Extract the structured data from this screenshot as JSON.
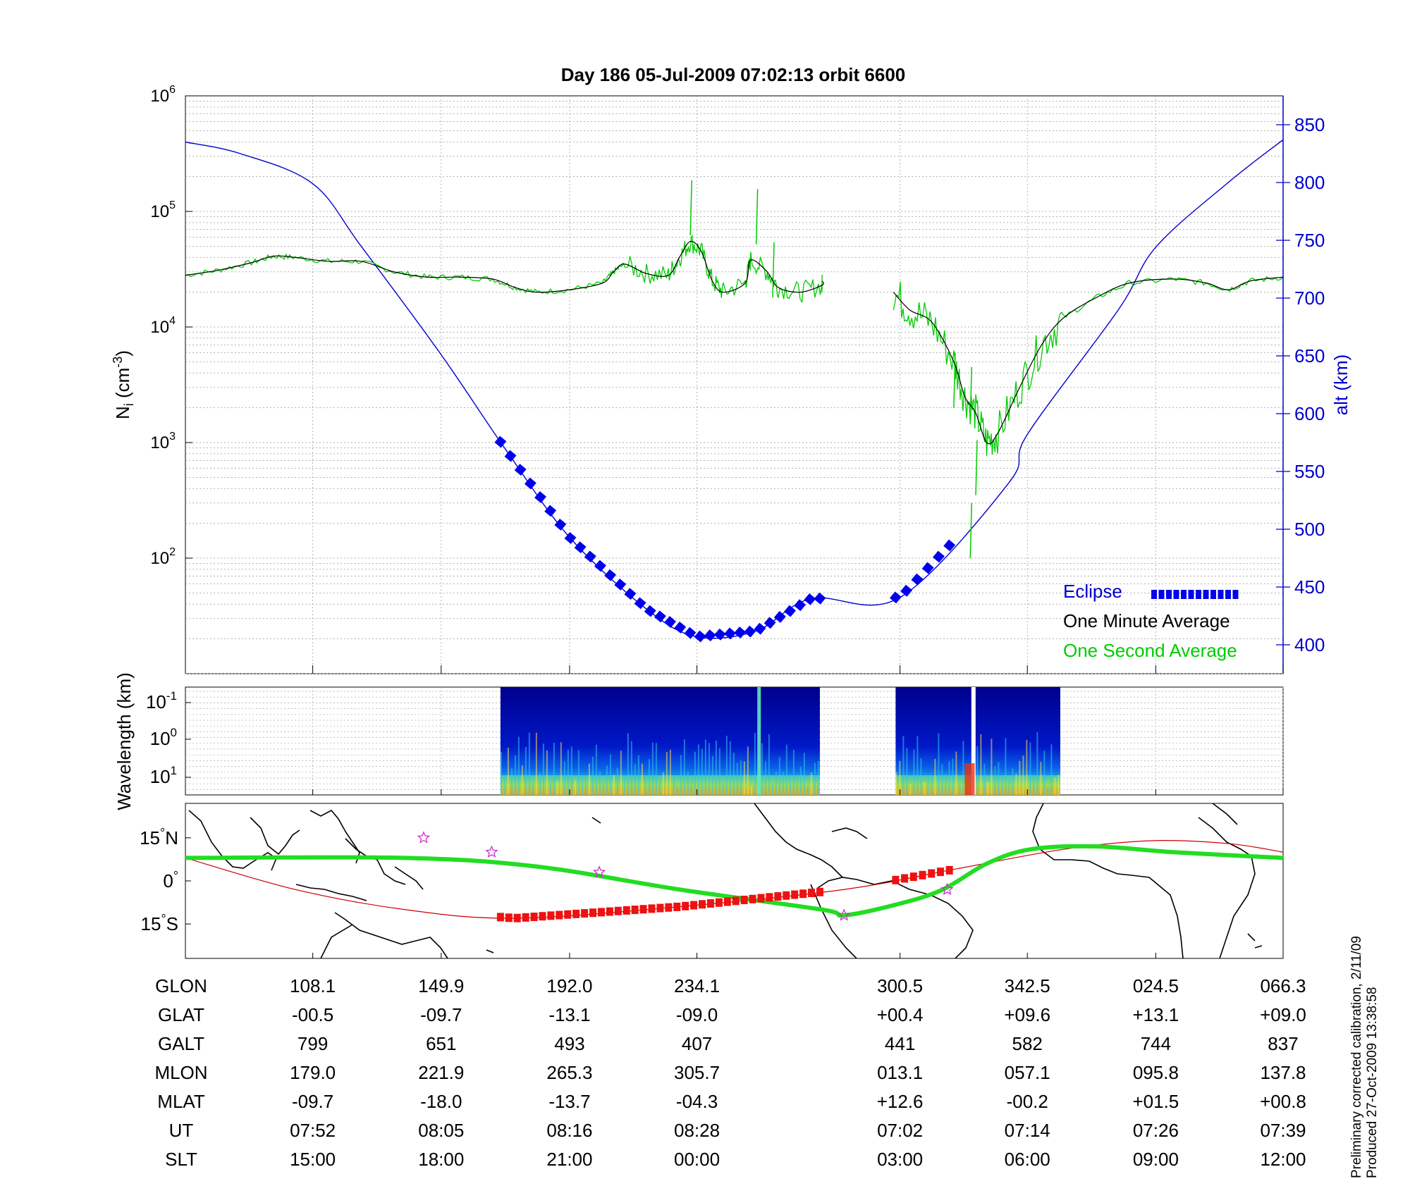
{
  "title": "Day 186  05-Jul-2009 07:02:13   orbit 6600",
  "colors": {
    "alt": "#0000cc",
    "minute_avg": "#000000",
    "second_avg": "#00cc00",
    "eclipse": "#0000ee",
    "eclipse_map": "#ee1111",
    "star": "#cc33cc",
    "trace_red": "#cc0000"
  },
  "panel_top": {
    "ylabel_left": "N",
    "ylabel_left_sub": "i",
    "ylabel_left_rest": " (cm",
    "ylabel_left_sup": "-3",
    "ylabel_left_end": ")",
    "yticks_left": [
      "10",
      "10",
      "10",
      "10",
      "10"
    ],
    "yticks_left_exp": [
      "6",
      "5",
      "4",
      "3",
      "2"
    ],
    "ylabel_right": "alt (km)",
    "yticks_right": [
      "850",
      "800",
      "750",
      "700",
      "650",
      "600",
      "550",
      "500",
      "450",
      "400"
    ],
    "legend": {
      "eclipse": "Eclipse",
      "minute": "One Minute Average",
      "second": "One Second Average"
    }
  },
  "panel_mid": {
    "ylabel": "Wavelength (km)",
    "yticks": [
      "10",
      "10",
      "10"
    ],
    "yticks_exp": [
      "-1",
      "0",
      "1"
    ]
  },
  "panel_map": {
    "yticks": [
      "15",
      "0",
      "15"
    ],
    "yticks_suffix": [
      "N",
      "",
      "S"
    ]
  },
  "chart_data": {
    "type": "line",
    "log_y": true,
    "ylim_density": [
      10,
      1000000
    ],
    "ylim_alt_km": [
      375,
      875
    ],
    "altitude_km": [
      {
        "x": 0.0,
        "y": 835
      },
      {
        "x": 0.05,
        "y": 825
      },
      {
        "x": 0.116,
        "y": 799
      },
      {
        "x": 0.16,
        "y": 745
      },
      {
        "x": 0.233,
        "y": 651
      },
      {
        "x": 0.291,
        "y": 570
      },
      {
        "x": 0.35,
        "y": 493
      },
      {
        "x": 0.42,
        "y": 431
      },
      {
        "x": 0.466,
        "y": 407
      },
      {
        "x": 0.52,
        "y": 412
      },
      {
        "x": 0.57,
        "y": 440
      },
      {
        "x": 0.651,
        "y": 441
      },
      {
        "x": 0.75,
        "y": 540
      },
      {
        "x": 0.767,
        "y": 582
      },
      {
        "x": 0.85,
        "y": 690
      },
      {
        "x": 0.884,
        "y": 744
      },
      {
        "x": 0.95,
        "y": 800
      },
      {
        "x": 1.0,
        "y": 837
      }
    ],
    "one_minute_average": [
      [
        {
          "x": 0.0,
          "y": 28000
        },
        {
          "x": 0.03,
          "y": 31000
        },
        {
          "x": 0.06,
          "y": 36000
        },
        {
          "x": 0.08,
          "y": 41000
        },
        {
          "x": 0.1,
          "y": 40000
        },
        {
          "x": 0.13,
          "y": 37000
        },
        {
          "x": 0.16,
          "y": 37000
        },
        {
          "x": 0.19,
          "y": 30000
        },
        {
          "x": 0.22,
          "y": 27000
        },
        {
          "x": 0.25,
          "y": 27000
        },
        {
          "x": 0.28,
          "y": 26000
        },
        {
          "x": 0.3,
          "y": 22000
        },
        {
          "x": 0.32,
          "y": 20000
        },
        {
          "x": 0.35,
          "y": 21000
        },
        {
          "x": 0.38,
          "y": 24000
        },
        {
          "x": 0.39,
          "y": 30000
        },
        {
          "x": 0.4,
          "y": 35000
        },
        {
          "x": 0.42,
          "y": 29000
        },
        {
          "x": 0.44,
          "y": 28000
        },
        {
          "x": 0.45,
          "y": 40000
        },
        {
          "x": 0.46,
          "y": 55000
        },
        {
          "x": 0.47,
          "y": 45000
        },
        {
          "x": 0.48,
          "y": 25000
        },
        {
          "x": 0.49,
          "y": 20000
        },
        {
          "x": 0.51,
          "y": 24000
        },
        {
          "x": 0.515,
          "y": 38000
        },
        {
          "x": 0.53,
          "y": 30000
        },
        {
          "x": 0.54,
          "y": 22000
        },
        {
          "x": 0.56,
          "y": 20000
        },
        {
          "x": 0.58,
          "y": 23000
        },
        {
          "x": 0.58,
          "y": 25000
        }
      ],
      [
        {
          "x": 0.645,
          "y": 20000
        },
        {
          "x": 0.66,
          "y": 14000
        },
        {
          "x": 0.68,
          "y": 11000
        },
        {
          "x": 0.7,
          "y": 5000
        },
        {
          "x": 0.71,
          "y": 2500
        },
        {
          "x": 0.72,
          "y": 1800
        },
        {
          "x": 0.73,
          "y": 1000
        },
        {
          "x": 0.74,
          "y": 1200
        },
        {
          "x": 0.76,
          "y": 3000
        },
        {
          "x": 0.78,
          "y": 7000
        },
        {
          "x": 0.8,
          "y": 12000
        },
        {
          "x": 0.83,
          "y": 18000
        },
        {
          "x": 0.86,
          "y": 24000
        },
        {
          "x": 0.9,
          "y": 26000
        },
        {
          "x": 0.93,
          "y": 24000
        },
        {
          "x": 0.95,
          "y": 21000
        },
        {
          "x": 0.97,
          "y": 25000
        },
        {
          "x": 1.0,
          "y": 27000
        }
      ]
    ],
    "one_second_average_spikes": [
      {
        "x": 0.46,
        "y": 62000
      },
      {
        "x": 0.52,
        "y": 52000
      },
      {
        "x": 0.535,
        "y": 18000
      },
      {
        "x": 0.7,
        "y": 2000
      },
      {
        "x": 0.715,
        "y": 1500
      },
      {
        "x": 0.72,
        "y": 350
      },
      {
        "x": 0.715,
        "y": 100
      }
    ],
    "eclipse_segments": [
      [
        0.287,
        0.578
      ],
      [
        0.647,
        0.696
      ]
    ],
    "spectrogram_segments": [
      [
        0.287,
        0.578
      ],
      [
        0.647,
        0.797
      ]
    ],
    "ground_track": [
      {
        "x": 0.0,
        "y": 8
      },
      {
        "x": 0.2,
        "y": 8
      },
      {
        "x": 0.32,
        "y": 5
      },
      {
        "x": 0.45,
        "y": -3
      },
      {
        "x": 0.58,
        "y": -10
      },
      {
        "x": 0.6,
        "y": -12
      },
      {
        "x": 0.65,
        "y": -8
      },
      {
        "x": 0.69,
        "y": -3
      },
      {
        "x": 0.73,
        "y": 6
      },
      {
        "x": 0.77,
        "y": 11
      },
      {
        "x": 0.83,
        "y": 12
      },
      {
        "x": 0.9,
        "y": 10
      },
      {
        "x": 1.0,
        "y": 8
      }
    ],
    "magnetic_equator": [
      {
        "x": 0.0,
        "y": 8
      },
      {
        "x": 0.1,
        "y": -3
      },
      {
        "x": 0.2,
        "y": -10
      },
      {
        "x": 0.3,
        "y": -13
      },
      {
        "x": 0.45,
        "y": -9
      },
      {
        "x": 0.6,
        "y": -3
      },
      {
        "x": 0.7,
        "y": 4
      },
      {
        "x": 0.8,
        "y": 11
      },
      {
        "x": 0.88,
        "y": 14
      },
      {
        "x": 0.95,
        "y": 13
      },
      {
        "x": 1.0,
        "y": 10
      }
    ],
    "stars": [
      {
        "x": 0.217,
        "y": 15
      },
      {
        "x": 0.279,
        "y": 10
      },
      {
        "x": 0.377,
        "y": 3
      },
      {
        "x": 0.6,
        "y": -12
      },
      {
        "x": 0.694,
        "y": -3
      }
    ],
    "table": {
      "rows": [
        {
          "label": "GLON",
          "values": [
            "108.1",
            "149.9",
            "192.0",
            "234.1",
            "300.5",
            "342.5",
            "024.5",
            "066.3"
          ]
        },
        {
          "label": "GLAT",
          "values": [
            "-00.5",
            "-09.7",
            "-13.1",
            "-09.0",
            "+00.4",
            "+09.6",
            "+13.1",
            "+09.0"
          ]
        },
        {
          "label": "GALT",
          "values": [
            "799",
            "651",
            "493",
            "407",
            "441",
            "582",
            "744",
            "837"
          ]
        },
        {
          "label": "MLON",
          "values": [
            "179.0",
            "221.9",
            "265.3",
            "305.7",
            "013.1",
            "057.1",
            "095.8",
            "137.8"
          ]
        },
        {
          "label": "MLAT",
          "values": [
            "-09.7",
            "-18.0",
            "-13.7",
            "-04.3",
            "+12.6",
            "-00.2",
            "+01.5",
            "+00.8"
          ]
        },
        {
          "label": "UT",
          "values": [
            "07:52",
            "08:05",
            "08:16",
            "08:28",
            "07:02",
            "07:14",
            "07:26",
            "07:39"
          ]
        },
        {
          "label": "SLT",
          "values": [
            "15:00",
            "18:00",
            "21:00",
            "00:00",
            "03:00",
            "06:00",
            "09:00",
            "12:00"
          ]
        }
      ],
      "column_x": [
        0.116,
        0.233,
        0.35,
        0.466,
        0.651,
        0.767,
        0.884,
        1.0
      ]
    }
  },
  "side_note": {
    "line1": "Preliminary corrected calibration, 2/11/09",
    "line2": "Produced 27-Oct-2009 13:38:58"
  }
}
